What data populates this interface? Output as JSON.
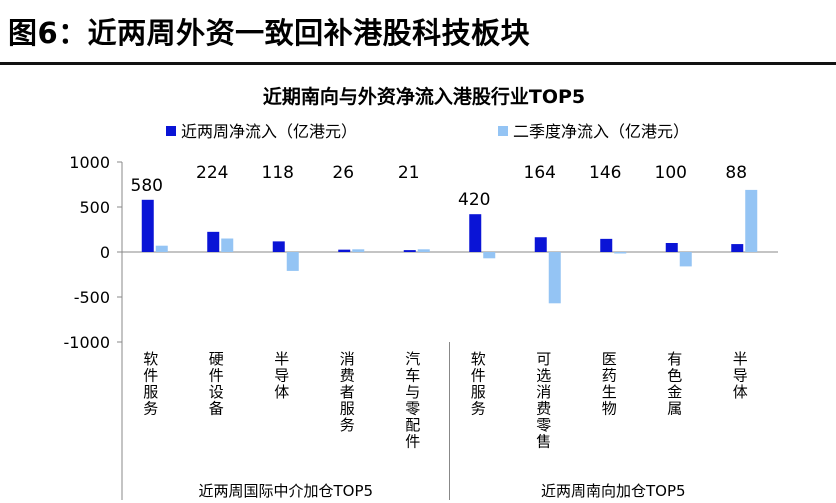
{
  "figure": {
    "title": "图6：近两周外资一致回补港股科技板块"
  },
  "chart_data": {
    "type": "bar",
    "title": "近期南向与外资净流入港股行业TOP5",
    "xlabel": "",
    "ylabel": "",
    "ylim": [
      -1000,
      1000
    ],
    "yticks": [
      1000,
      500,
      0,
      -500,
      -1000
    ],
    "grid": false,
    "legend_position": "top",
    "categories": [
      "软件服务",
      "硬件设备",
      "半导体",
      "消费者服务",
      "汽车与零配件",
      "软件服务",
      "可选消费零售",
      "医药生物",
      "有色金属",
      "半导体"
    ],
    "groups": [
      {
        "label": "近两周国际中介加仓TOP5",
        "count": 5
      },
      {
        "label": "近两周南向加仓TOP5",
        "count": 5
      }
    ],
    "series": [
      {
        "name": "近两周净流入（亿港元）",
        "color": "#0a14d6",
        "values": [
          580,
          224,
          118,
          26,
          21,
          420,
          164,
          146,
          100,
          88
        ],
        "labels": [
          "580",
          "224",
          "118",
          "26",
          "21",
          "420",
          "164",
          "146",
          "100",
          "88"
        ]
      },
      {
        "name": "二季度净流入（亿港元）",
        "color": "#94c4f4",
        "values": [
          70,
          150,
          -210,
          30,
          30,
          -70,
          -570,
          0,
          -160,
          690
        ]
      }
    ]
  }
}
